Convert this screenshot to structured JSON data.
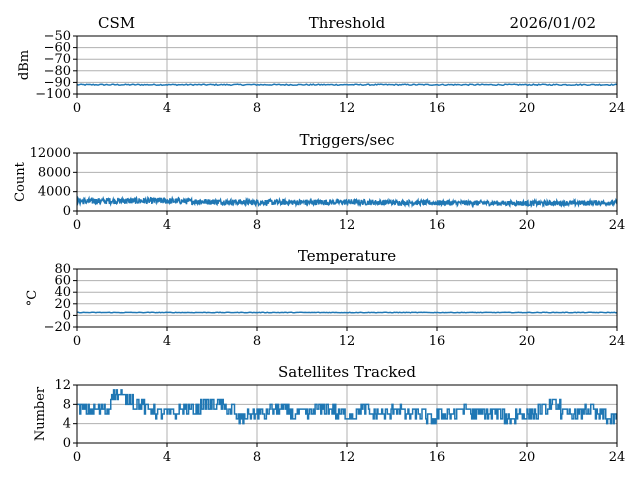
{
  "header": {
    "left": "CSM",
    "date": "2026/01/02"
  },
  "colors": {
    "series": "#1f77b4",
    "grid": "#b0b0b0"
  },
  "chart_data": [
    {
      "type": "line",
      "title": "Threshold",
      "ylabel": "dBm",
      "xlim": [
        0,
        24
      ],
      "ylim": [
        -100,
        -50
      ],
      "xticks": [
        0,
        4,
        8,
        12,
        16,
        20,
        24
      ],
      "yticks": [
        -100,
        -90,
        -80,
        -70,
        -60,
        -50
      ],
      "ytick_labels": [
        "−100",
        "−90",
        "−80",
        "−70",
        "−60",
        "−50"
      ],
      "grid": true,
      "series": [
        {
          "style": "thin-band",
          "x": [
            0,
            24
          ],
          "y_center": [
            -92,
            -92
          ],
          "y_spread": [
            1,
            1
          ]
        }
      ]
    },
    {
      "type": "line",
      "title": "Triggers/sec",
      "ylabel": "Count",
      "xlim": [
        0,
        24
      ],
      "ylim": [
        0,
        12000
      ],
      "xticks": [
        0,
        4,
        8,
        12,
        16,
        20,
        24
      ],
      "yticks": [
        0,
        4000,
        8000,
        12000
      ],
      "ytick_labels": [
        "0",
        "4000",
        "8000",
        "12000"
      ],
      "grid": true,
      "series": [
        {
          "style": "noisy-band",
          "x": [
            0,
            2,
            4,
            6,
            8,
            10,
            12,
            14,
            16,
            18,
            20,
            22,
            24
          ],
          "y_center": [
            2000,
            2100,
            2100,
            1900,
            1800,
            1800,
            1850,
            1750,
            1700,
            1650,
            1600,
            1650,
            1700
          ],
          "y_spread": [
            1300,
            1300,
            1300,
            1200,
            1200,
            1200,
            1200,
            1100,
            1100,
            1100,
            1100,
            1100,
            1100
          ]
        }
      ]
    },
    {
      "type": "line",
      "title": "Temperature",
      "ylabel": "°C",
      "xlim": [
        0,
        24
      ],
      "ylim": [
        -20,
        80
      ],
      "xticks": [
        0,
        4,
        8,
        12,
        16,
        20,
        24
      ],
      "yticks": [
        -20,
        0,
        20,
        40,
        60,
        80
      ],
      "ytick_labels": [
        "−20",
        "0",
        "20",
        "40",
        "60",
        "80"
      ],
      "grid": true,
      "series": [
        {
          "style": "thin-band",
          "x": [
            0,
            24
          ],
          "y_center": [
            5,
            5
          ],
          "y_spread": [
            1,
            1
          ]
        }
      ]
    },
    {
      "type": "line",
      "title": "Satellites Tracked",
      "ylabel": "Number",
      "xlim": [
        0,
        24
      ],
      "ylim": [
        0,
        12
      ],
      "xticks": [
        0,
        4,
        8,
        12,
        16,
        20,
        24
      ],
      "yticks": [
        0,
        4,
        8,
        12
      ],
      "ytick_labels": [
        "0",
        "4",
        "8",
        "12"
      ],
      "grid": true,
      "series": [
        {
          "style": "step",
          "x": [
            0,
            0.5,
            1,
            1.5,
            2,
            2.5,
            3,
            3.5,
            4,
            4.5,
            5,
            5.5,
            6,
            6.5,
            7,
            7.5,
            8,
            8.5,
            9,
            9.5,
            10,
            10.5,
            11,
            11.5,
            12,
            12.5,
            13,
            13.5,
            14,
            14.5,
            15,
            15.5,
            16,
            16.5,
            17,
            17.5,
            18,
            18.5,
            19,
            19.5,
            20,
            20.5,
            21,
            21.5,
            22,
            22.5,
            23,
            23.5,
            24
          ],
          "y": [
            7,
            7,
            7,
            10,
            9,
            8,
            7,
            6,
            6,
            7,
            7,
            8,
            8,
            7,
            5,
            6,
            6,
            7,
            7,
            6,
            6,
            7,
            7,
            6,
            6,
            7,
            6,
            6,
            7,
            6,
            6,
            5,
            6,
            6,
            7,
            6,
            6,
            6,
            5,
            6,
            6,
            7,
            8,
            6,
            6,
            7,
            6,
            5,
            5
          ]
        }
      ]
    }
  ]
}
